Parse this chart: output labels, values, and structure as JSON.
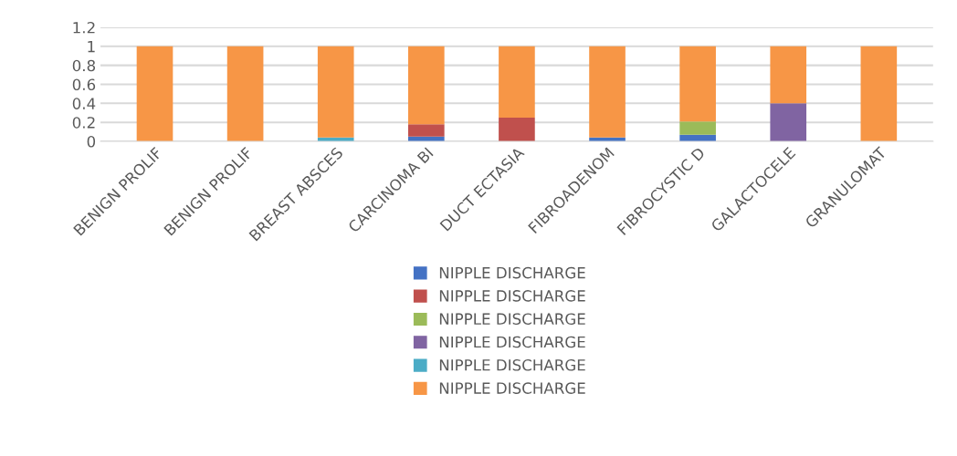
{
  "chart_data": {
    "type": "bar",
    "stacked": true,
    "categories": [
      "BENIGN PROLIF",
      "BENIGN PROLIF",
      "BREAST ABSCES",
      "CARCINOMA BI",
      "DUCT ECTASIA",
      "FIBROADENOM",
      "FIBROCYSTIC D",
      "GALACTOCELE",
      "GRANULOMAT"
    ],
    "series": [
      {
        "name": "NIPPLE DISCHARGE",
        "color": "#4472c4",
        "values": [
          0,
          0,
          0,
          0.05,
          0,
          0.04,
          0.07,
          0,
          0
        ]
      },
      {
        "name": "NIPPLE DISCHARGE",
        "color": "#c0504d",
        "values": [
          0,
          0,
          0,
          0.13,
          0.25,
          0,
          0,
          0,
          0
        ]
      },
      {
        "name": "NIPPLE DISCHARGE",
        "color": "#9bbb59",
        "values": [
          0,
          0,
          0,
          0,
          0,
          0,
          0.14,
          0,
          0
        ]
      },
      {
        "name": "NIPPLE DISCHARGE",
        "color": "#8064a2",
        "values": [
          0,
          0,
          0,
          0,
          0,
          0,
          0,
          0.4,
          0
        ]
      },
      {
        "name": "NIPPLE DISCHARGE",
        "color": "#4bacc6",
        "values": [
          0,
          0,
          0.04,
          0,
          0,
          0,
          0,
          0,
          0
        ]
      },
      {
        "name": "NIPPLE DISCHARGE",
        "color": "#f79646",
        "values": [
          1,
          1,
          0.96,
          0.82,
          0.75,
          0.96,
          0.79,
          0.6,
          1
        ]
      }
    ],
    "ylim": [
      0,
      1.2
    ],
    "yticks": [
      0,
      0.2,
      0.4,
      0.6,
      0.8,
      1,
      1.2
    ],
    "grid": "y",
    "legend": "bottom"
  }
}
